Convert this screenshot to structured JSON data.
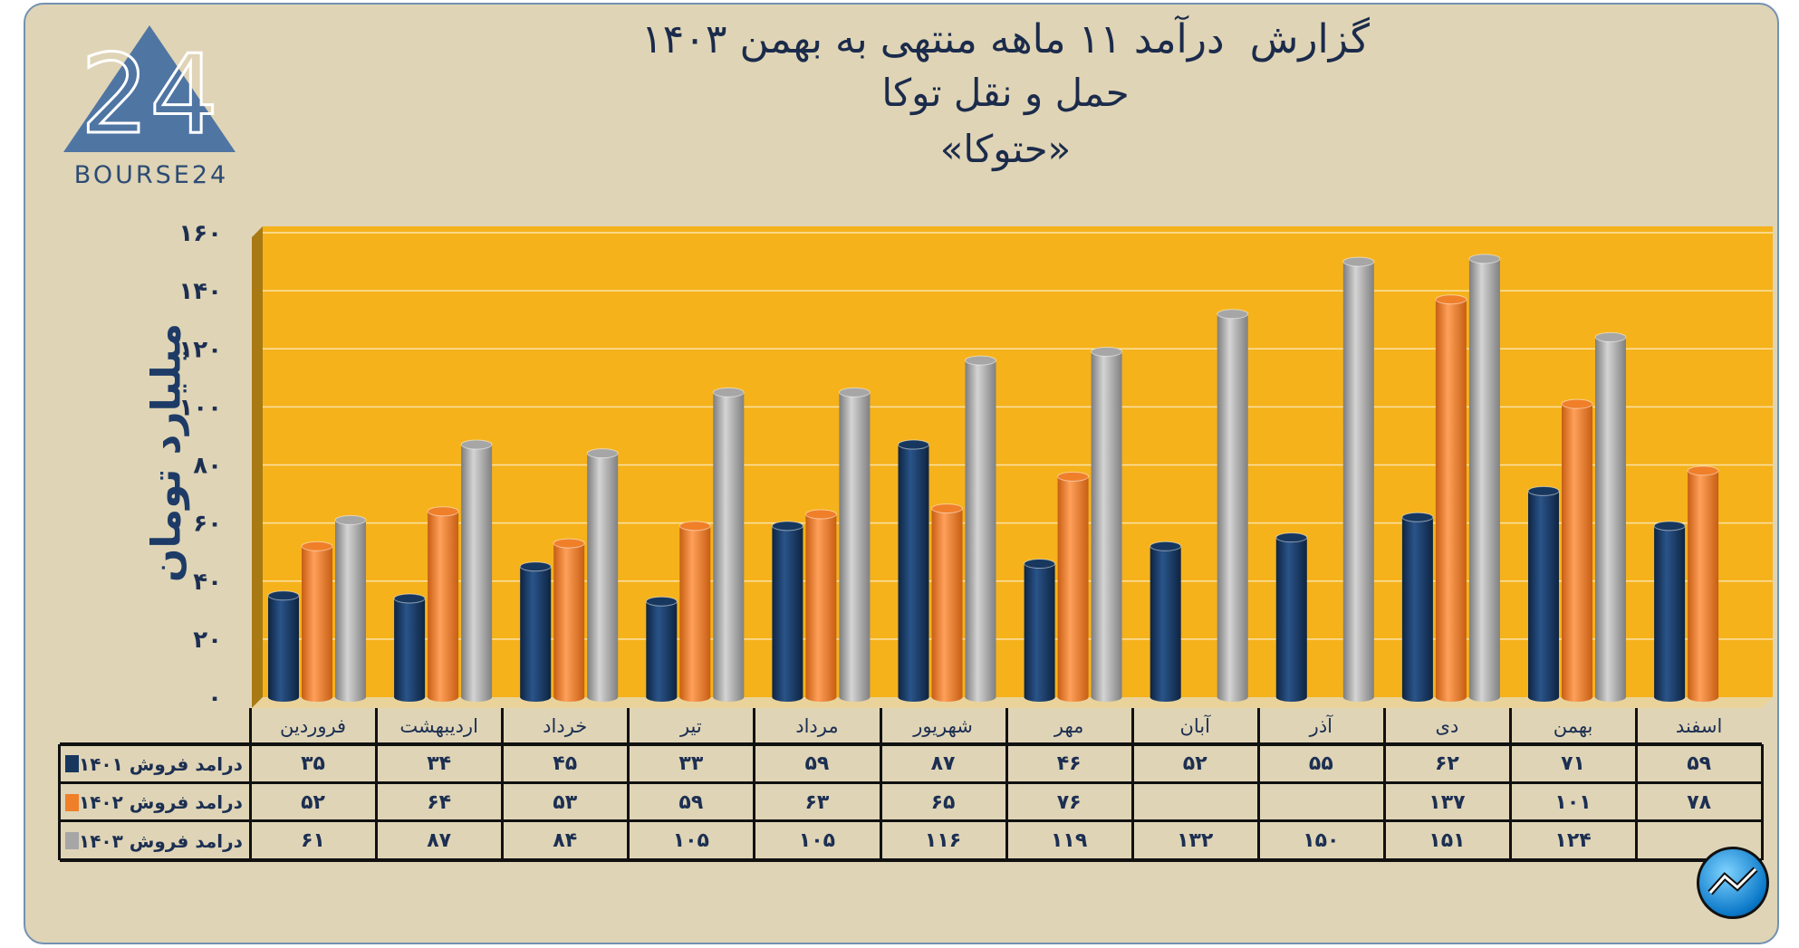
{
  "title": {
    "line1": "گزارش  درآمد ۱۱ ماهه منتهی به بهمن ۱۴۰۳",
    "line2": "حمل و نقل توکا",
    "line3": "«حتوکا»"
  },
  "logo": {
    "text": "BOURSE24",
    "mark": "24"
  },
  "badge_icon": "trend-arrow-icon",
  "colors": {
    "background": "#DFD4B6",
    "plot": "#F5B21B",
    "s1401": "#17375E",
    "s1402": "#F07F2A",
    "s1403": "#A6A6A6"
  },
  "chart_data": {
    "type": "bar",
    "style": "3d-cylinder",
    "title": "گزارش  درآمد ۱۱ ماهه منتهی به بهمن ۱۴۰۳ — حمل و نقل توکا «حتوکا»",
    "ylabel": "میلیارد تومان",
    "xlabel": "",
    "ylim": [
      0,
      160
    ],
    "yticks": [
      0,
      20,
      40,
      60,
      80,
      100,
      120,
      140,
      160
    ],
    "grid": true,
    "legend": "data-table-left",
    "categories": [
      "فروردین",
      "اردیبهشت",
      "خرداد",
      "تیر",
      "مرداد",
      "شهریور",
      "مهر",
      "آبان",
      "آذر",
      "دی",
      "بهمن",
      "اسفند"
    ],
    "series": [
      {
        "name": "درامد فروش ۱۴۰۱",
        "color": "#17375E",
        "values": [
          35,
          34,
          45,
          33,
          59,
          87,
          46,
          52,
          55,
          62,
          71,
          59
        ]
      },
      {
        "name": "درامد فروش ۱۴۰۲",
        "color": "#F07F2A",
        "values": [
          52,
          64,
          53,
          59,
          63,
          65,
          76,
          null,
          null,
          137,
          101,
          78
        ]
      },
      {
        "name": "درامد فروش ۱۴۰۳",
        "color": "#A6A6A6",
        "values": [
          61,
          87,
          84,
          105,
          105,
          116,
          119,
          132,
          150,
          151,
          124,
          null
        ]
      }
    ]
  }
}
